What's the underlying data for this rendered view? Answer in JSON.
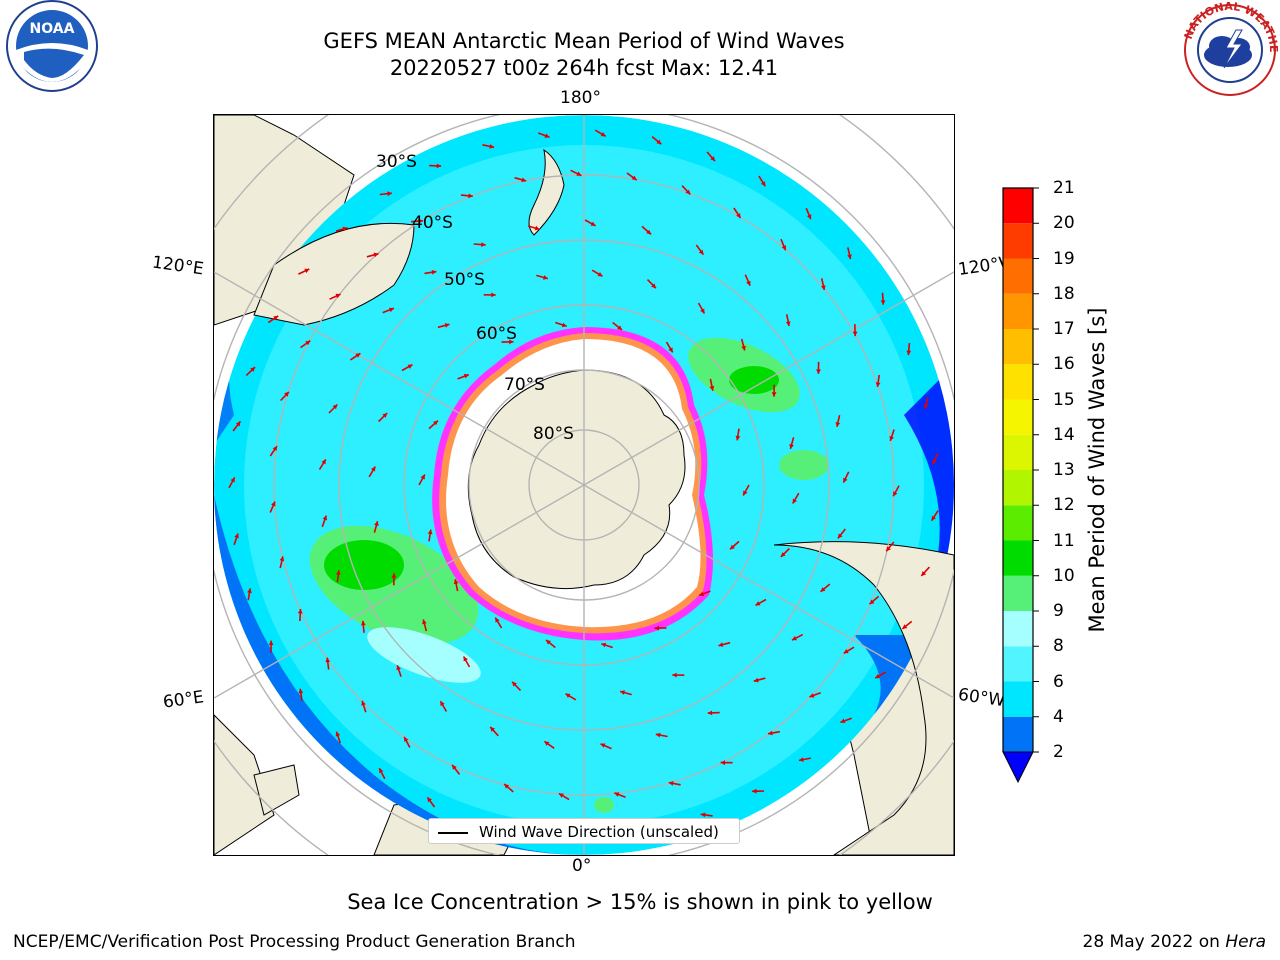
{
  "header": {
    "title_line1": "GEFS MEAN Antarctic Mean Period of Wind Waves",
    "title_line2": "20220527 t00z 264h fcst   Max: 12.41"
  },
  "logos": {
    "left": "noaa-logo",
    "left_text": "NOAA",
    "left_ring_text": "NATIONAL OCEANIC AND ATMOSPHERIC ADMINISTRATION · U.S. DEPARTMENT OF COMMERCE",
    "right": "nws-logo",
    "right_ring_text": "NATIONAL WEATHER SERVICE"
  },
  "map": {
    "projection": "south-polar-stereographic",
    "longitude_labels": {
      "top": "180°",
      "bottom": "0°",
      "left_upper": "120°E",
      "left_lower": "60°E",
      "right_upper": "120°W",
      "right_lower": "60°W"
    },
    "latitude_labels": [
      "30°S",
      "40°S",
      "50°S",
      "60°S",
      "70°S",
      "80°S"
    ],
    "legend_label": "Wind Wave Direction (unscaled)",
    "colors": {
      "land": "#efedd9",
      "sea_ice": "#ffffff",
      "gridline": "#b4b4b4",
      "arrow": "#e00000"
    }
  },
  "colorbar": {
    "title": "Mean Period of Wind Waves [s]",
    "ticks": [
      "21",
      "20",
      "19",
      "18",
      "17",
      "16",
      "15",
      "14",
      "13",
      "12",
      "11",
      "10",
      "9",
      "8",
      "6",
      "4",
      "2"
    ],
    "bands_bottom_to_top": [
      {
        "from": 2,
        "to": 4,
        "color": "#0073f6"
      },
      {
        "from": 4,
        "to": 6,
        "color": "#00e6ff"
      },
      {
        "from": 6,
        "to": 8,
        "color": "#52f5ff"
      },
      {
        "from": 8,
        "to": 9,
        "color": "#a6ffff"
      },
      {
        "from": 9,
        "to": 10,
        "color": "#56f078"
      },
      {
        "from": 10,
        "to": 11,
        "color": "#00dc00"
      },
      {
        "from": 11,
        "to": 12,
        "color": "#5cec00"
      },
      {
        "from": 12,
        "to": 13,
        "color": "#b2f500"
      },
      {
        "from": 13,
        "to": 14,
        "color": "#dcf500"
      },
      {
        "from": 14,
        "to": 15,
        "color": "#f5f500"
      },
      {
        "from": 15,
        "to": 16,
        "color": "#ffe100"
      },
      {
        "from": 16,
        "to": 17,
        "color": "#ffbe00"
      },
      {
        "from": 17,
        "to": 18,
        "color": "#ff9600"
      },
      {
        "from": 18,
        "to": 19,
        "color": "#ff6e00"
      },
      {
        "from": 19,
        "to": 20,
        "color": "#ff3c00"
      },
      {
        "from": 20,
        "to": 21,
        "color": "#ff0000"
      }
    ],
    "under_color": "#0000ff"
  },
  "caption": "Sea Ice Concentration > 15% is shown in pink to yellow",
  "footer": {
    "left": "NCEP/EMC/Verification Post Processing Product Generation Branch",
    "right_date": "28 May 2022 on ",
    "right_host": "Hera"
  }
}
